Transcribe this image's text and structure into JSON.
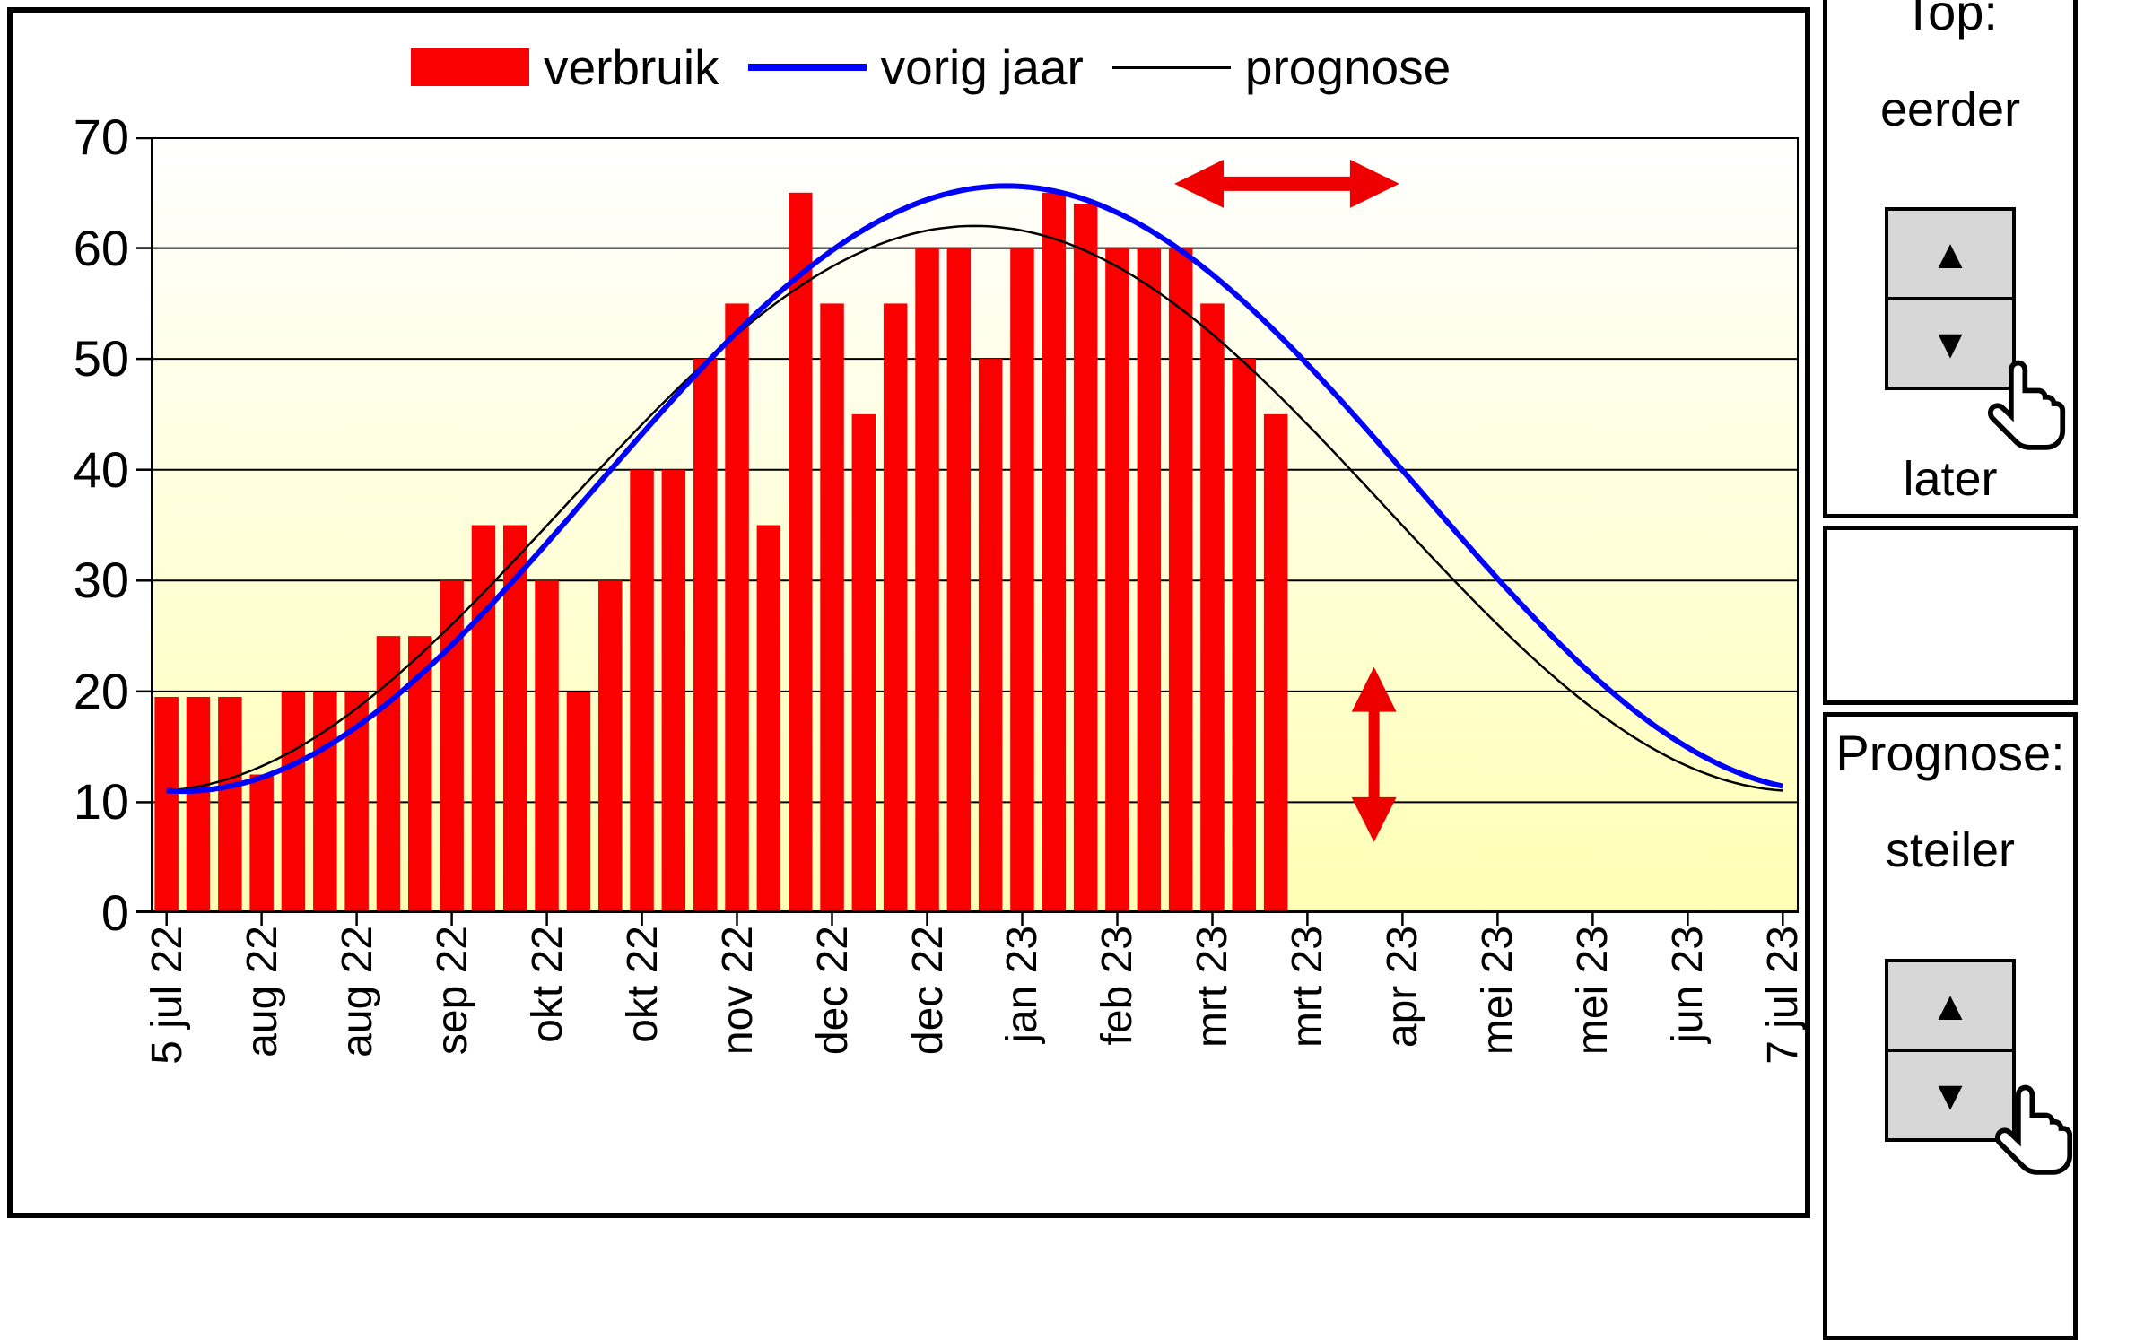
{
  "legend": {
    "items": [
      {
        "label": "verbruik",
        "marker": "bar",
        "color": "#fa0000"
      },
      {
        "label": "vorig jaar",
        "marker": "line",
        "color": "#0000ff"
      },
      {
        "label": "prognose",
        "marker": "line",
        "color": "#000000"
      }
    ]
  },
  "panel": {
    "glyphs": {
      "up": "▲",
      "down": "▼"
    },
    "top_control": {
      "title": "Top:",
      "up_label": "eerder",
      "down_label": "later"
    },
    "prognose_control": {
      "title": "Prognose:",
      "up_label": "steiler"
    }
  },
  "chart_data": {
    "type": "bar",
    "title": "",
    "ylim": [
      0,
      70
    ],
    "yticks": [
      0,
      10,
      20,
      30,
      40,
      50,
      60,
      70
    ],
    "grid": true,
    "legend_position": "top",
    "x_slot_count": 52,
    "xtick_positions": [
      0,
      3,
      6,
      9,
      12,
      15,
      18,
      21,
      24,
      27,
      30,
      33,
      36,
      39,
      42,
      45,
      48,
      51
    ],
    "xtick_labels": [
      "5 jul 22",
      "aug 22",
      "aug 22",
      "sep 22",
      "okt 22",
      "okt 22",
      "nov 22",
      "dec 22",
      "dec 22",
      "jan 23",
      "feb 23",
      "mrt 23",
      "mrt 23",
      "apr 23",
      "mei 23",
      "mei 23",
      "jun 23",
      "7 jul 23"
    ],
    "plot_background": {
      "top": "#ffffff",
      "mid": "#ffffd8",
      "bottom": "#ffffb4"
    },
    "series": [
      {
        "name": "verbruik",
        "type": "bar",
        "color": "#fa0000",
        "values": [
          19.5,
          19.5,
          19.5,
          12.5,
          20,
          20,
          20,
          25,
          25,
          30,
          35,
          35,
          30,
          20,
          30,
          40,
          40,
          50,
          55,
          35,
          65,
          55,
          45,
          55,
          60,
          60,
          50,
          60,
          65,
          64,
          60,
          60,
          60,
          55,
          50,
          45
        ]
      },
      {
        "name": "vorig jaar",
        "type": "line",
        "color": "#0000ff",
        "stroke_width": 6,
        "curve": {
          "shape": "cosine",
          "mean": 38.3,
          "amplitude": 27.3,
          "peak_slot": 26.5,
          "period": 52,
          "min": 11.0,
          "max": 65.6
        }
      },
      {
        "name": "prognose",
        "type": "line",
        "color": "#000000",
        "stroke_width": 2.5,
        "curve": {
          "shape": "cosine",
          "mean": 36.5,
          "amplitude": 25.5,
          "peak_slot": 25.5,
          "period": 52,
          "min": 11.0,
          "max": 62.0
        }
      }
    ],
    "annotations": [
      {
        "type": "double_arrow_horizontal",
        "color": "#ee0000",
        "x1_slot": 31.8,
        "x2_slot": 38.9,
        "y_value": 65.8
      },
      {
        "type": "double_arrow_vertical",
        "color": "#ee0000",
        "x_slot": 38.1,
        "y1_value": 22.2,
        "y2_value": 6.4
      }
    ]
  }
}
